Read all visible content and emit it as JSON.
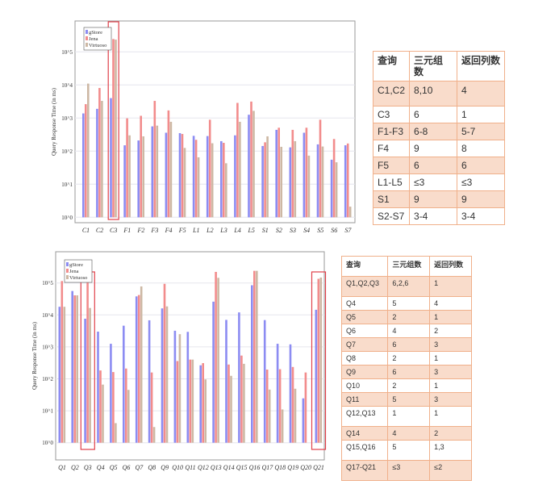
{
  "chart_data": [
    {
      "type": "bar",
      "title": "",
      "xlabel": "",
      "ylabel": "Query Response Time (in ms)",
      "yscale": "log",
      "ylim": [
        1,
        1000000
      ],
      "ytick_labels": [
        "10^0",
        "10^1",
        "10^2",
        "10^3",
        "10^4",
        "10^5"
      ],
      "grid": true,
      "legend_position": "top-left",
      "categories": [
        "C1",
        "C2",
        "C3",
        "F1",
        "F2",
        "F3",
        "F4",
        "F5",
        "L1",
        "L2",
        "L3",
        "L4",
        "L5",
        "S1",
        "S2",
        "S3",
        "S4",
        "S5",
        "S6",
        "S7"
      ],
      "series": [
        {
          "name": "gStore",
          "color": "#8c8cf2",
          "values": [
            1380,
            1900,
            4000,
            150,
            210,
            560,
            360,
            350,
            290,
            285,
            200,
            300,
            1260,
            143,
            440,
            130,
            360,
            160,
            55,
            150
          ]
        },
        {
          "name": "Jena",
          "color": "#f28c8c",
          "values": [
            2630,
            8100,
            245000,
            980,
            1170,
            3300,
            1700,
            330,
            220,
            890,
            178,
            2870,
            3150,
            185,
            510,
            440,
            510,
            890,
            233,
            170
          ]
        },
        {
          "name": "Virtuoso",
          "color": "#cdb8a4",
          "values": [
            11000,
            3300,
            235000,
            300,
            280,
            590,
            770,
            125,
            65,
            173,
            43,
            770,
            1650,
            280,
            135,
            200,
            73,
            138,
            46,
            2.1
          ]
        }
      ],
      "highlighted_categories": [
        "C3"
      ],
      "highlight_color": "#e0404a"
    },
    {
      "type": "bar",
      "title": "",
      "xlabel": "",
      "ylabel": "Query Response Time (in ms)",
      "yscale": "log",
      "ylim": [
        0.5,
        1000000
      ],
      "ytick_labels": [
        "10^0",
        "10^1",
        "10^2",
        "10^3",
        "10^4",
        "10^5"
      ],
      "grid": true,
      "legend_position": "top-left",
      "categories": [
        "Q1",
        "Q2",
        "Q3",
        "Q4",
        "Q5",
        "Q6",
        "Q7",
        "Q8",
        "Q9",
        "Q10",
        "Q11",
        "Q12",
        "Q13",
        "Q14",
        "Q15",
        "Q16",
        "Q17",
        "Q18",
        "Q19",
        "Q20",
        "Q21"
      ],
      "series": [
        {
          "name": "gStore",
          "color": "#8c8cf2",
          "values": [
            18000,
            56000,
            7600,
            3000,
            1250,
            4600,
            38000,
            6800,
            16000,
            3200,
            2950,
            265,
            26000,
            7000,
            12000,
            85000,
            6900,
            1250,
            1200,
            24.5,
            14500
          ]
        },
        {
          "name": "Jena",
          "color": "#f28c8c",
          "values": [
            115000,
            41000,
            112000,
            183,
            163,
            210,
            42000,
            158,
            94000,
            360,
            400,
            310,
            222000,
            280,
            535,
            240000,
            195,
            200,
            235,
            158,
            135000
          ]
        },
        {
          "name": "Virtuoso",
          "color": "#cdb8a4",
          "values": [
            18000,
            41000,
            16500,
            66,
            4.1,
            45,
            78000,
            3.1,
            18500,
            2500,
            400,
            96,
            145000,
            124,
            295,
            240000,
            46,
            11,
            49,
            1,
            148000
          ]
        }
      ],
      "highlighted_categories": [
        "Q3",
        "Q21"
      ],
      "highlight_color": "#e0404a"
    }
  ],
  "table1": {
    "headers": [
      "查询",
      "三元组数",
      "返回列数"
    ],
    "rows": [
      [
        "C1,C2",
        "8,10",
        "4"
      ],
      [
        "C3",
        "6",
        "1"
      ],
      [
        "F1-F3",
        "6-8",
        "5-7"
      ],
      [
        "F4",
        "9",
        "8"
      ],
      [
        "F5",
        "6",
        "6"
      ],
      [
        "L1-L5",
        "≤3",
        "≤3"
      ],
      [
        "S1",
        "9",
        "9"
      ],
      [
        "S2-S7",
        "3-4",
        "3-4"
      ]
    ]
  },
  "table2": {
    "headers": [
      "查询",
      "三元组数",
      "返回列数"
    ],
    "rows": [
      [
        "Q1,Q2,Q3",
        "6,2,6",
        "1"
      ],
      [
        "Q4",
        "5",
        "4"
      ],
      [
        "Q5",
        "2",
        "1"
      ],
      [
        "Q6",
        "4",
        "2"
      ],
      [
        "Q7",
        "6",
        "3"
      ],
      [
        "Q8",
        "2",
        "1"
      ],
      [
        "Q9",
        "6",
        "3"
      ],
      [
        "Q10",
        "2",
        "1"
      ],
      [
        "Q11",
        "5",
        "3"
      ],
      [
        "Q12,Q13",
        "1",
        "1"
      ],
      [
        "Q14",
        "4",
        "2"
      ],
      [
        "Q15,Q16",
        "5",
        "1,3"
      ],
      [
        "Q17-Q21",
        "≤3",
        "≤2"
      ]
    ]
  }
}
